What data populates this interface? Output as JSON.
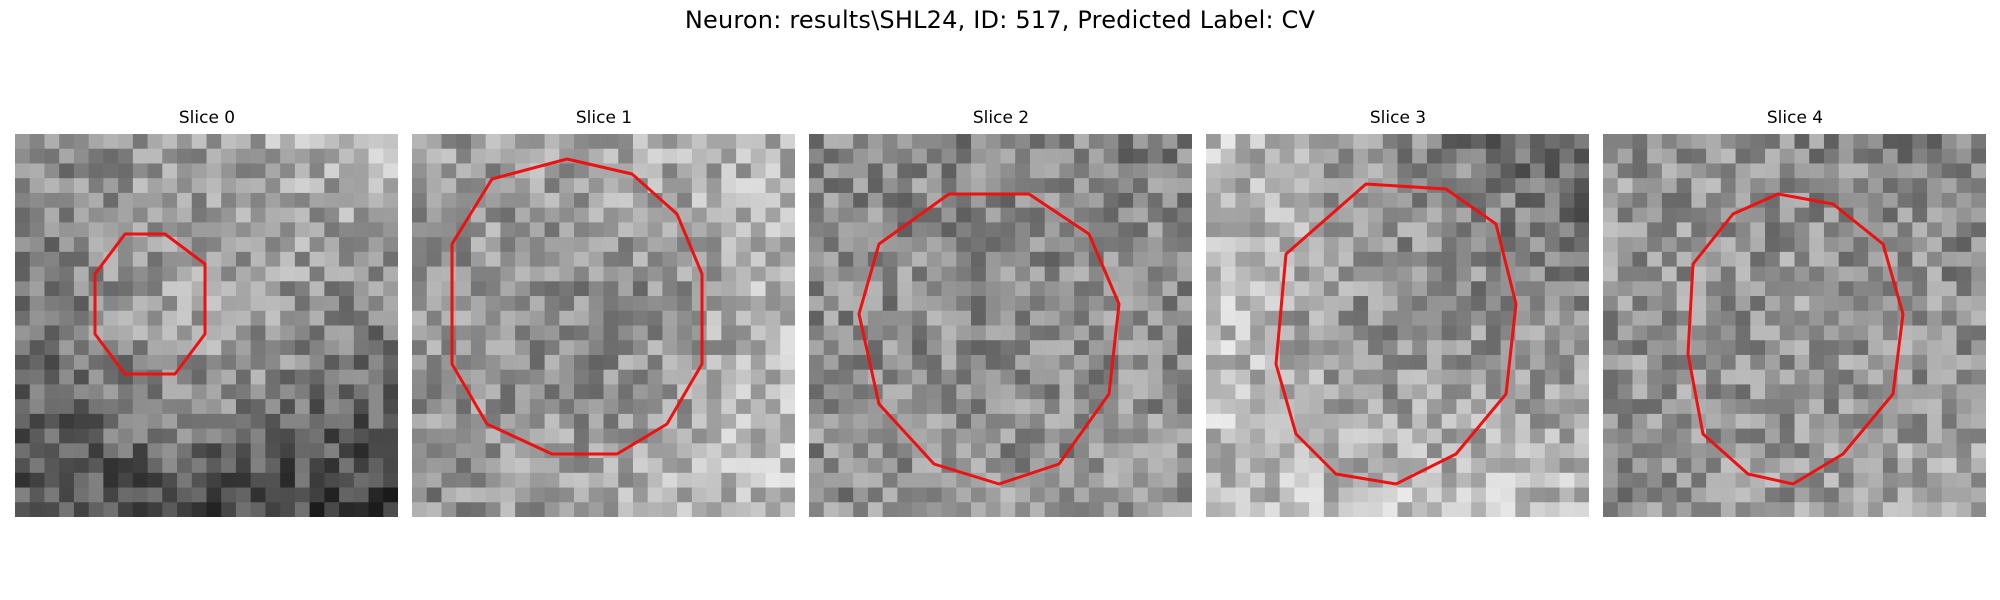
{
  "figure": {
    "title": "Neuron: results\\SHL24, ID: 517, Predicted Label: CV",
    "contour_color": "#ee1111"
  },
  "panels": [
    {
      "title": "Slice 0"
    },
    {
      "title": "Slice 1"
    },
    {
      "title": "Slice 2"
    },
    {
      "title": "Slice 3"
    },
    {
      "title": "Slice 4"
    }
  ]
}
